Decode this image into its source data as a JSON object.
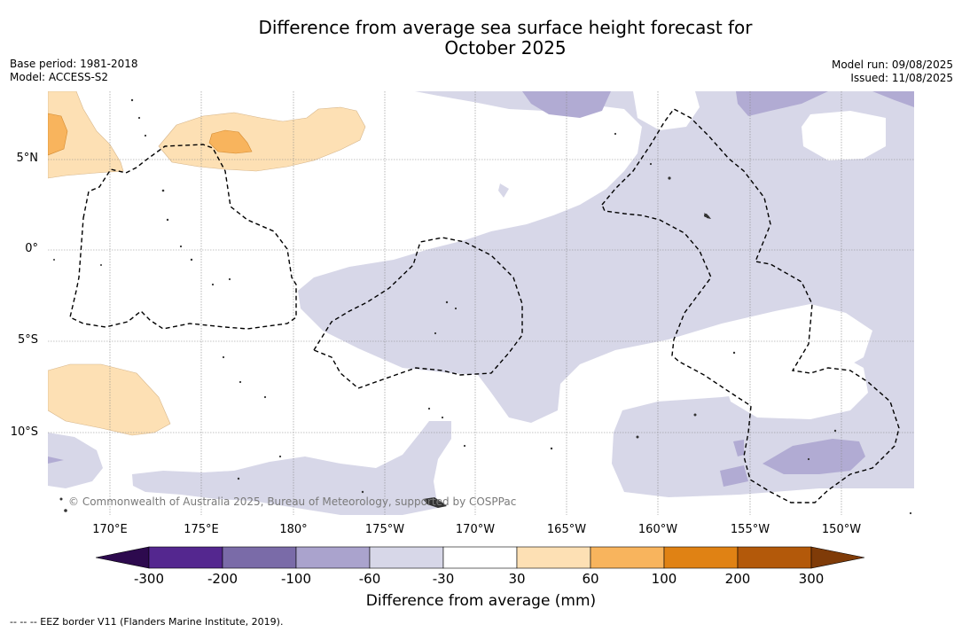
{
  "title": {
    "line1": "Difference from average sea surface height forecast for",
    "line2": "October 2025"
  },
  "meta_left": {
    "base_period": "Base period: 1981-2018",
    "model": "Model: ACCESS-S2"
  },
  "meta_right": {
    "model_run": "Model run: 09/08/2025",
    "issued": "Issued: 11/08/2025"
  },
  "lat_labels": [
    "5°N",
    "0°",
    "5°S",
    "10°S"
  ],
  "lon_labels": [
    "170°E",
    "175°E",
    "180°",
    "175°W",
    "170°W",
    "165°W",
    "160°W",
    "155°W",
    "150°W"
  ],
  "credit": "© Commonwealth of Australia 2025, Bureau of Meteorology, supported by COSPPac",
  "colorbar": {
    "ticks": [
      "-300",
      "-200",
      "-100",
      "-60",
      "-30",
      "30",
      "60",
      "100",
      "200",
      "300"
    ],
    "colors": [
      "#2d0a4e",
      "#54278f",
      "#7a6ba8",
      "#aaa3cd",
      "#d7d7e8",
      "#ffffff",
      "#fde0b4",
      "#f8b45d",
      "#e08214",
      "#b3590a",
      "#7f3b08"
    ],
    "label": "Difference from average (mm)"
  },
  "legend_note": "--  --  -- EEZ border V11 (Flanders Marine Institute, 2019)."
}
